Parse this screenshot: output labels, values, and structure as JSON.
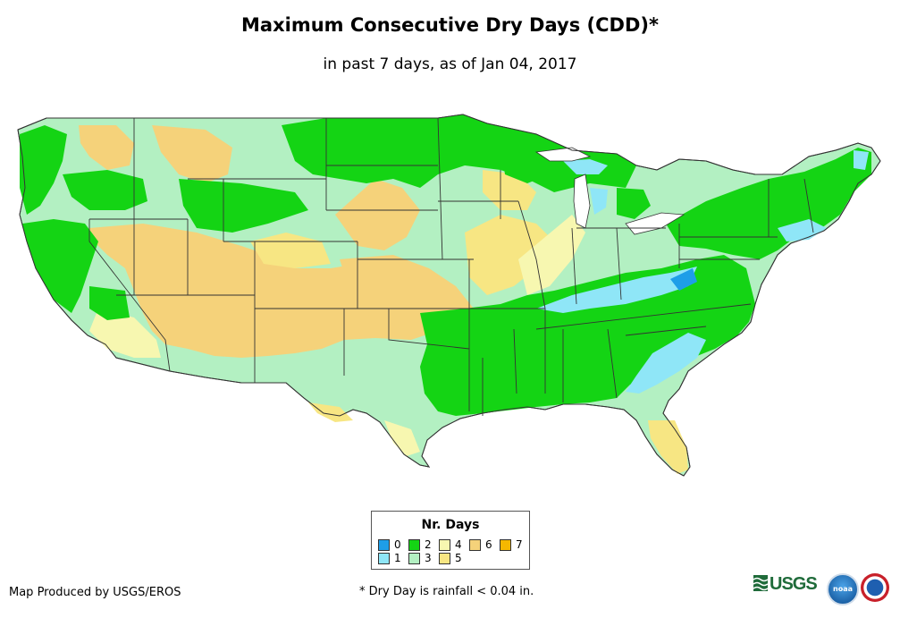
{
  "title": "Maximum Consecutive Dry Days (CDD)*",
  "subtitle": "in past 7 days, as of Jan 04, 2017",
  "legend": {
    "title": "Nr. Days",
    "items": [
      {
        "label": "0",
        "color": "#1e9ee8"
      },
      {
        "label": "1",
        "color": "#8fe6f7"
      },
      {
        "label": "2",
        "color": "#14d414"
      },
      {
        "label": "3",
        "color": "#b3f0c2"
      },
      {
        "label": "4",
        "color": "#f7f7b0"
      },
      {
        "label": "5",
        "color": "#f7e683"
      },
      {
        "label": "6",
        "color": "#f5d27a"
      },
      {
        "label": "7",
        "color": "#f5b800"
      }
    ]
  },
  "footer": {
    "producer": "Map Produced by USGS/EROS",
    "note": "* Dry Day is rainfall < 0.04 in."
  },
  "logos": {
    "usgs_text": "USGS",
    "noaa_text": "noaa"
  }
}
